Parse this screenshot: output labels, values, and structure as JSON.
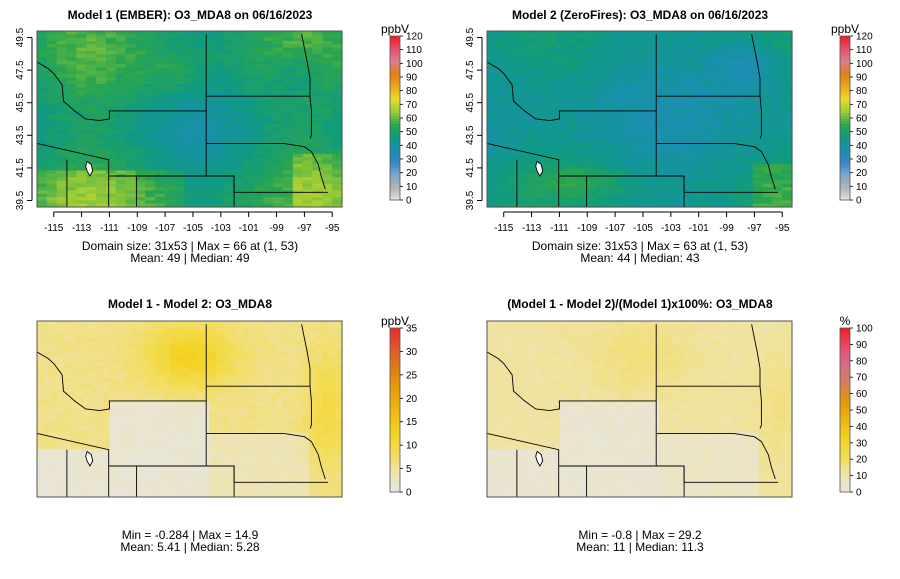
{
  "colors": {
    "ozone_ramp": [
      "#e6e6e6",
      "#b3b3b3",
      "#7fa7cd",
      "#3a86c6",
      "#1a8fb0",
      "#0f9a83",
      "#2aa54f",
      "#9ccb35",
      "#e8dc2a",
      "#e6aa1c",
      "#e07f12",
      "#d97f8f",
      "#e8506e",
      "#f01e1e"
    ],
    "diff_ramp": [
      "#e6e6e6",
      "#efe3a8",
      "#f3dc54",
      "#f3d21f",
      "#efb90f",
      "#e89d0d",
      "#de7f12",
      "#e05a30",
      "#ee2a2a"
    ],
    "pct_ramp": [
      "#e6e6e6",
      "#efe3a8",
      "#f3dc54",
      "#f3d21f",
      "#ebb512",
      "#e69412",
      "#d57f55",
      "#d56d8a",
      "#e64c6a",
      "#f01e1e"
    ],
    "border": "#000000",
    "box": "#555555"
  },
  "chart_data": [
    {
      "type": "heatmap",
      "title": "Model 1 (EMBER): O3_MDA8 on 06/16/2023",
      "units": "ppbV",
      "x_ticks": [
        "-115",
        "-113",
        "-111",
        "-109",
        "-107",
        "-105",
        "-103",
        "-101",
        "-99",
        "-97",
        "-95"
      ],
      "y_ticks": [
        "39.5",
        "41.5",
        "43.5",
        "45.5",
        "47.5",
        "49.5"
      ],
      "legend_ticks": [
        "0",
        "10",
        "20",
        "30",
        "40",
        "50",
        "60",
        "70",
        "80",
        "90",
        "100",
        "110",
        "120"
      ],
      "legend_range": [
        0,
        120
      ],
      "grid": {
        "nx": 31,
        "ny": 53
      },
      "stats": [
        "Domain size: 31x53 | Max = 66 at (1, 53)",
        "Mean: 49 |  Median: 49"
      ],
      "field_mean": 49,
      "field_max": 66
    },
    {
      "type": "heatmap",
      "title": "Model 2 (ZeroFires): O3_MDA8 on 06/16/2023",
      "units": "ppbV",
      "x_ticks": [
        "-115",
        "-113",
        "-111",
        "-109",
        "-107",
        "-105",
        "-103",
        "-101",
        "-99",
        "-97",
        "-95"
      ],
      "y_ticks": [
        "39.5",
        "41.5",
        "43.5",
        "45.5",
        "47.5",
        "49.5"
      ],
      "legend_ticks": [
        "0",
        "10",
        "20",
        "30",
        "40",
        "50",
        "60",
        "70",
        "80",
        "90",
        "100",
        "110",
        "120"
      ],
      "legend_range": [
        0,
        120
      ],
      "grid": {
        "nx": 31,
        "ny": 53
      },
      "stats": [
        "Domain size: 31x53 | Max = 63 at (1, 53)",
        "Mean: 44 |  Median: 43"
      ],
      "field_mean": 44,
      "field_max": 63
    },
    {
      "type": "heatmap",
      "title": "Model 1 - Model 2: O3_MDA8",
      "units": "ppbV",
      "legend_ticks": [
        "0",
        "5",
        "10",
        "15",
        "20",
        "25",
        "30",
        "35"
      ],
      "legend_range": [
        0,
        35
      ],
      "stats": [
        "Min = -0.284 | Max = 14.9",
        "Mean: 5.41 |  Median: 5.28"
      ],
      "field_min": -0.284,
      "field_max": 14.9
    },
    {
      "type": "heatmap",
      "title": "(Model 1 - Model 2)/(Model 1)x100%: O3_MDA8",
      "units": "%",
      "legend_ticks": [
        "0",
        "10",
        "20",
        "30",
        "40",
        "50",
        "60",
        "70",
        "80",
        "90",
        "100"
      ],
      "legend_range": [
        0,
        100
      ],
      "stats": [
        "Min = -0.8 | Max = 29.2",
        "Mean: 11 |  Median: 11.3"
      ],
      "field_min": -0.8,
      "field_max": 29.2
    }
  ]
}
